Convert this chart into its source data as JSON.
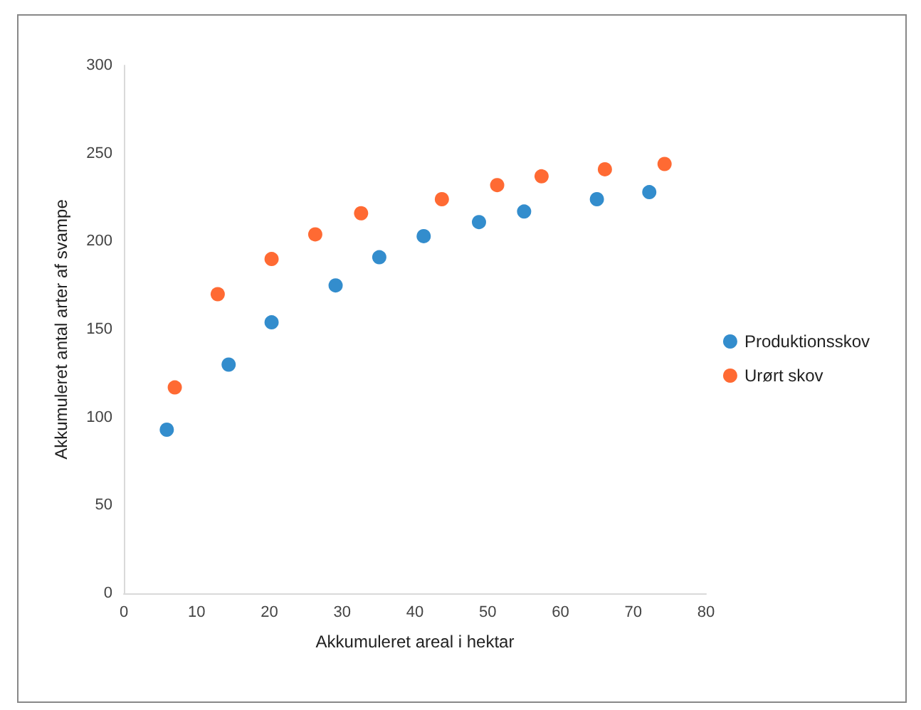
{
  "chart_data": {
    "type": "scatter",
    "xlabel": "Akkumuleret areal i hektar",
    "ylabel": "Akkumuleret antal arter af svampe",
    "series": [
      {
        "name": "Produktionsskov",
        "color": "#0070c0",
        "x": [
          5.9,
          14.4,
          20.3,
          29.1,
          35.1,
          41.2,
          48.8,
          55.0,
          65.0,
          72.2
        ],
        "values": [
          93,
          130,
          154,
          175,
          191,
          203,
          211,
          217,
          224,
          228
        ]
      },
      {
        "name": "Urørt skov",
        "color": "#ff4500",
        "x": [
          7.0,
          12.9,
          20.3,
          26.3,
          32.6,
          43.7,
          51.3,
          57.4,
          66.1,
          74.3
        ],
        "values": [
          117,
          170,
          190,
          204,
          216,
          224,
          232,
          237,
          241,
          244
        ]
      }
    ],
    "xlim": [
      0,
      80
    ],
    "xticks": [
      0,
      10,
      20,
      30,
      40,
      50,
      60,
      70,
      80
    ],
    "ylim": [
      0,
      300
    ],
    "yticks": [
      0,
      50,
      100,
      150,
      200,
      250,
      300
    ],
    "grid": false,
    "legend": "right",
    "marker": "circle"
  }
}
